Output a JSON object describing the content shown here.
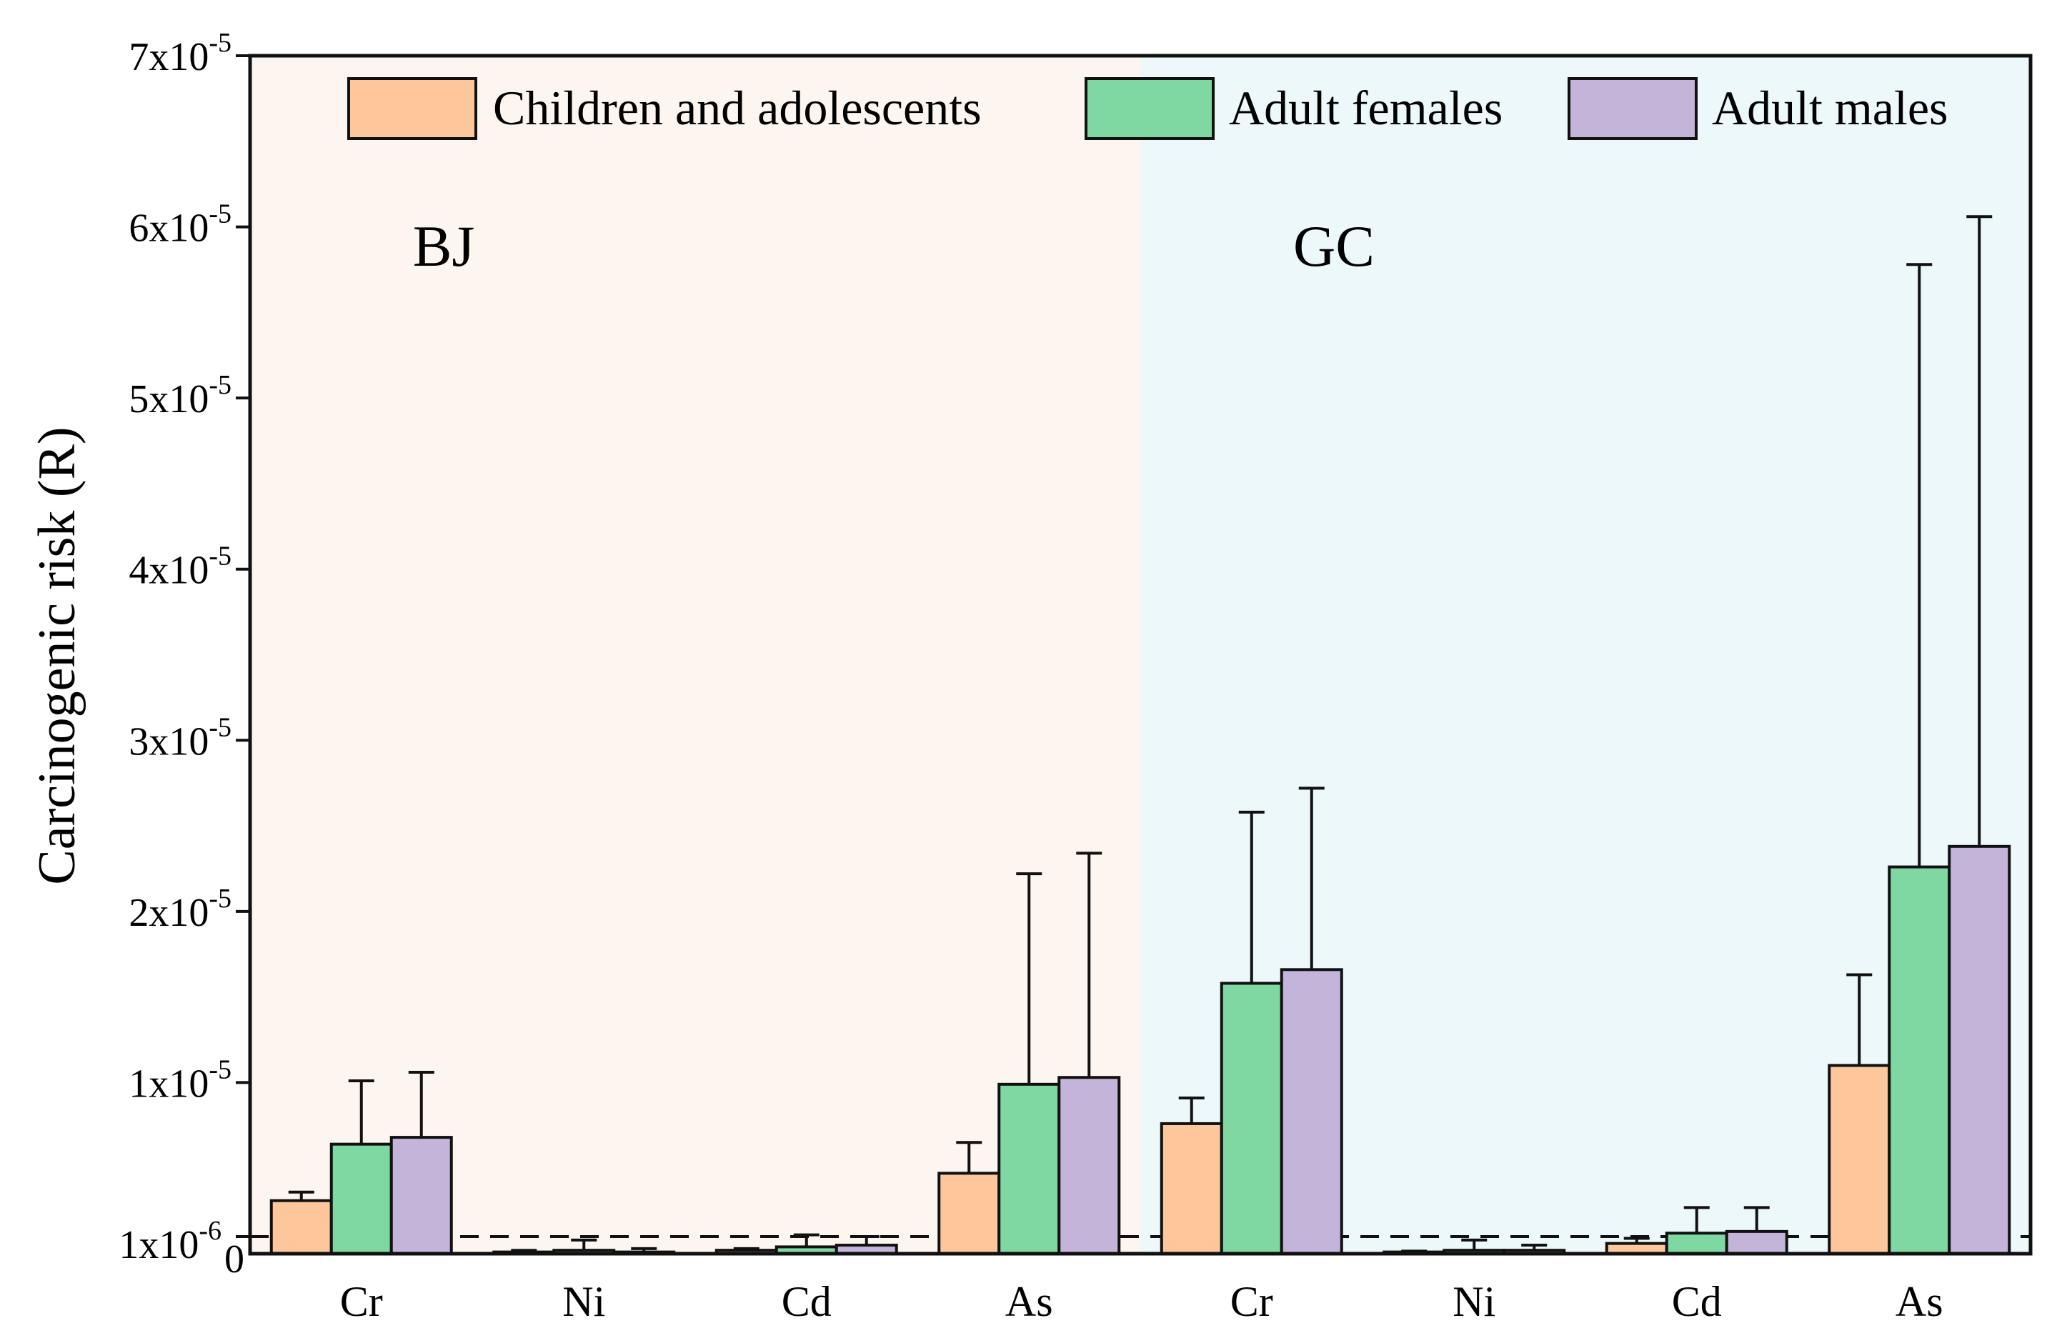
{
  "chart_data": {
    "type": "bar",
    "ylabel": "Carcinogenic risk (R)",
    "ylim": [
      0,
      7e-05
    ],
    "y_ticks": [
      {
        "value": 1e-05,
        "base": "1x10",
        "exp": "-5"
      },
      {
        "value": 2e-05,
        "base": "2x10",
        "exp": "-5"
      },
      {
        "value": 3e-05,
        "base": "3x10",
        "exp": "-5"
      },
      {
        "value": 4e-05,
        "base": "4x10",
        "exp": "-5"
      },
      {
        "value": 5e-05,
        "base": "5x10",
        "exp": "-5"
      },
      {
        "value": 6e-05,
        "base": "6x10",
        "exp": "-5"
      },
      {
        "value": 7e-05,
        "base": "7x10",
        "exp": "-5"
      }
    ],
    "zero_label": "0",
    "threshold": {
      "value": 1e-06,
      "base": "1x10",
      "exp": "-6",
      "style": "dashed"
    },
    "regions": [
      {
        "name": "BJ",
        "color": "#FDF5EF",
        "categories": [
          "Cr",
          "Ni",
          "Cd",
          "As"
        ]
      },
      {
        "name": "GC",
        "color": "#EDF8FB",
        "categories": [
          "Cr",
          "Ni",
          "Cd",
          "As"
        ]
      }
    ],
    "series": [
      {
        "name": "Children and adolescents",
        "color": "#FDC79B",
        "values": [
          3.1e-06,
          1e-07,
          2e-07,
          4.7e-06,
          7.6e-06,
          1e-07,
          6e-07,
          1.1e-05
        ],
        "errors": [
          5e-07,
          1e-07,
          1e-07,
          1.8e-06,
          1.5e-06,
          5e-08,
          3e-07,
          5.3e-06
        ]
      },
      {
        "name": "Adult females",
        "color": "#7FD8A2",
        "values": [
          6.4e-06,
          2e-07,
          4e-07,
          9.9e-06,
          1.58e-05,
          2e-07,
          1.2e-06,
          2.26e-05
        ],
        "errors": [
          3.7e-06,
          6e-07,
          7e-07,
          1.23e-05,
          1e-05,
          6e-07,
          1.5e-06,
          3.52e-05
        ]
      },
      {
        "name": "Adult males",
        "color": "#C5B4DA",
        "values": [
          6.8e-06,
          1e-07,
          5e-07,
          1.03e-05,
          1.66e-05,
          2e-07,
          1.3e-06,
          2.38e-05
        ],
        "errors": [
          3.8e-06,
          2e-07,
          5e-07,
          1.31e-05,
          1.06e-05,
          3e-07,
          1.4e-06,
          3.68e-05
        ]
      }
    ],
    "legend_position": "top"
  }
}
